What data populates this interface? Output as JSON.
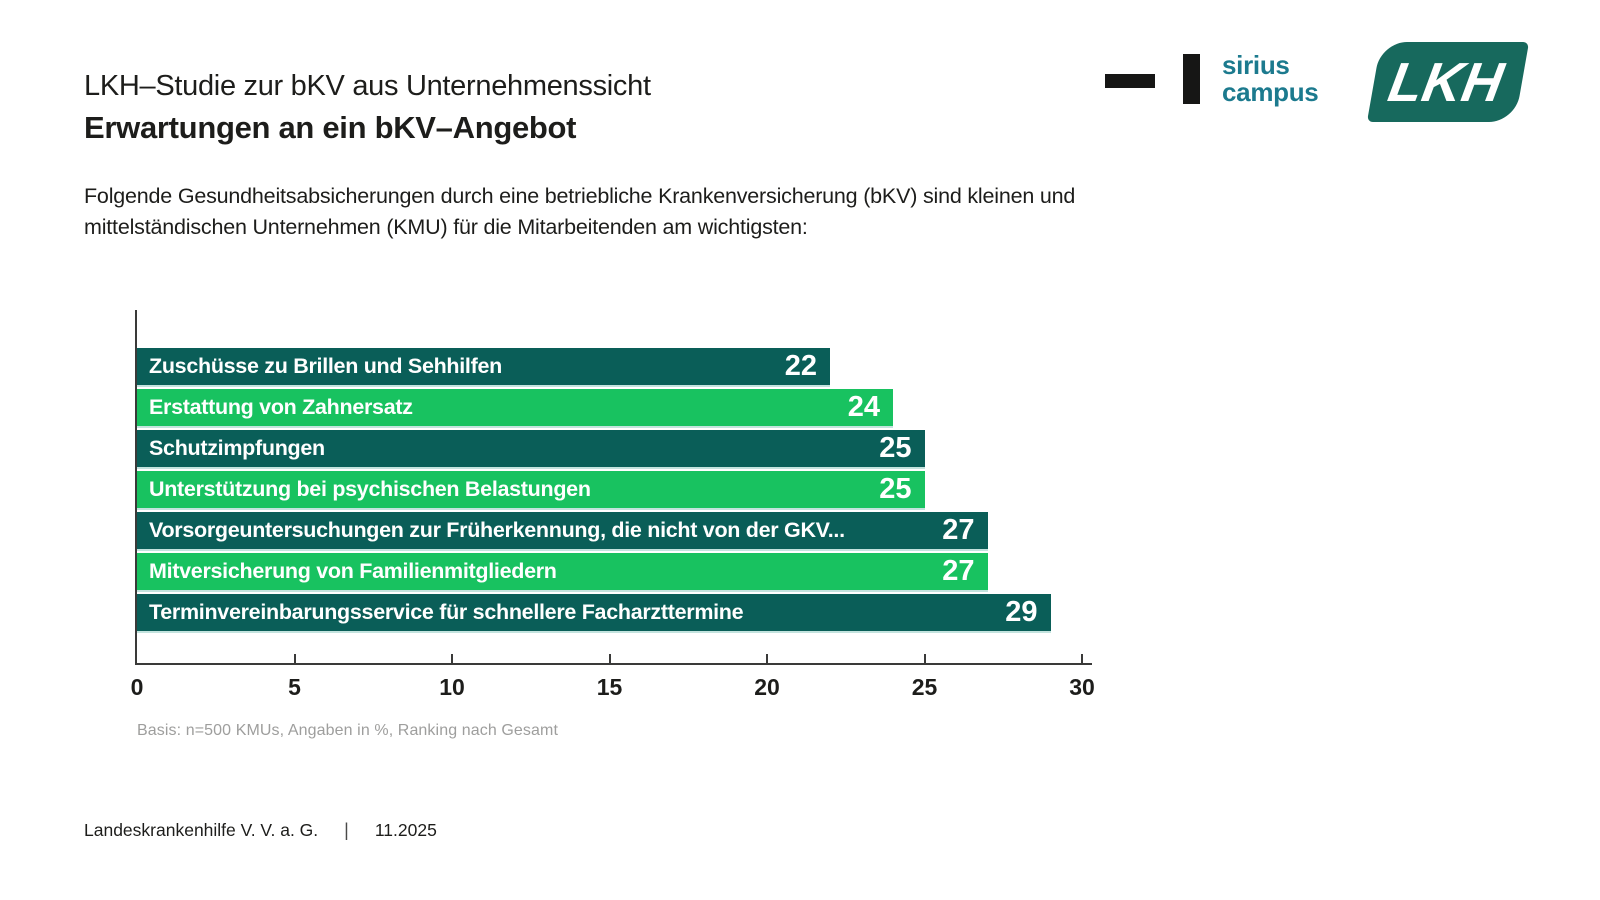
{
  "header": {
    "title_line1": "LKH–Studie zur bKV aus Unternehmenssicht",
    "title_line2": "Erwartungen an ein bKV–Angebot"
  },
  "intro_text": "Folgende Gesundheitsabsicherungen durch eine betriebliche Krankenversicherung (bKV) sind kleinen und mittelständischen Unternehmen (KMU) für die Mitarbeitenden am wichtigsten:",
  "logos": {
    "sirius": {
      "line1": "sirius",
      "line2": "campus",
      "text_color": "#1c7a8e",
      "mark_color": "#161615"
    },
    "lkh": {
      "text": "LKH",
      "bg_color": "#17695d",
      "text_color": "#ffffff"
    }
  },
  "chart_data": {
    "type": "bar",
    "orientation": "horizontal",
    "title": "Erwartungen an ein bKV-Angebot",
    "categories": [
      "Zuschüsse zu Brillen und Sehhilfen",
      "Erstattung von Zahnersatz",
      "Schutzimpfungen",
      "Unterstützung bei psychischen Belastungen",
      "Vorsorgeuntersuchungen zur Früherkennung, die nicht von der GKV...",
      "Mitversicherung von Familienmitgliedern",
      "Terminvereinbarungsservice für schnellere Facharzttermine"
    ],
    "values": [
      22,
      24,
      25,
      25,
      27,
      27,
      29
    ],
    "bar_colors": [
      "#0a5e58",
      "#18c260",
      "#0a5e58",
      "#18c260",
      "#0a5e58",
      "#18c260",
      "#0a5e58"
    ],
    "value_label_color": "#ffffff",
    "xlabel": "",
    "ylabel": "",
    "xlim": [
      0,
      30
    ],
    "x_ticks": [
      0,
      5,
      10,
      15,
      20,
      25,
      30
    ],
    "grid": false,
    "legend": false,
    "units": "%",
    "note": "Basis: n=500 KMUs, Angaben in %, Ranking nach Gesamt"
  },
  "footer": {
    "company": "Landeskrankenhilfe V. V. a. G.",
    "separator": "|",
    "date": "11.2025"
  }
}
